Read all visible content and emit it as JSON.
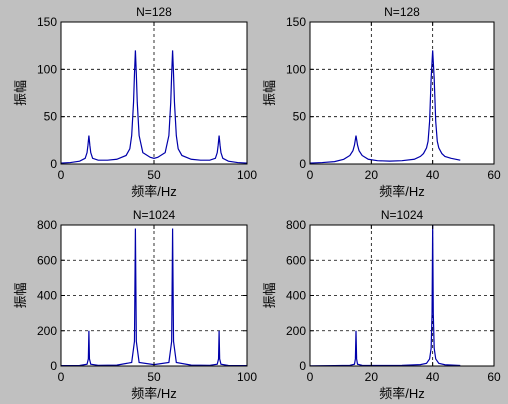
{
  "figure": {
    "background": "#c0c0c0",
    "axes_background": "#ffffff",
    "line_color": "#0000aa"
  },
  "chart_data": [
    {
      "type": "line",
      "title": "N=128",
      "xlabel": "频率/Hz",
      "ylabel": "振幅",
      "xlim": [
        0,
        100
      ],
      "ylim": [
        0,
        150
      ],
      "xticks": [
        0,
        50,
        100
      ],
      "yticks": [
        0,
        50,
        100,
        150
      ],
      "grid": true,
      "series": [
        {
          "x": [
            0,
            5,
            10,
            13,
            14,
            14.5,
            15,
            15.5,
            16,
            17,
            20,
            25,
            30,
            35,
            37,
            38,
            39,
            39.5,
            40,
            40.5,
            41,
            42,
            44,
            48,
            50,
            52,
            56,
            58,
            59,
            59.5,
            60,
            60.5,
            61,
            62,
            63,
            65,
            70,
            75,
            80,
            83,
            84,
            84.5,
            85,
            85.5,
            86,
            87,
            90,
            95,
            100
          ],
          "values": [
            1,
            1.5,
            3,
            6,
            12,
            20,
            30,
            20,
            12,
            6,
            4,
            4,
            5,
            9,
            16,
            30,
            65,
            95,
            120,
            95,
            65,
            30,
            12,
            7,
            6,
            7,
            12,
            30,
            65,
            95,
            120,
            95,
            65,
            30,
            16,
            9,
            5,
            4,
            4,
            6,
            12,
            20,
            30,
            20,
            12,
            6,
            3,
            1.5,
            1
          ]
        }
      ]
    },
    {
      "type": "line",
      "title": "N=128",
      "xlabel": "频率/Hz",
      "ylabel": "振幅",
      "xlim": [
        0,
        60
      ],
      "ylim": [
        0,
        150
      ],
      "xticks": [
        0,
        20,
        40,
        60
      ],
      "yticks": [
        0,
        50,
        100,
        150
      ],
      "grid": true,
      "series": [
        {
          "x": [
            0,
            4,
            8,
            11,
            13,
            14,
            14.5,
            15,
            15.5,
            16,
            17,
            19,
            22,
            26,
            30,
            34,
            36,
            37,
            38,
            38.5,
            39,
            39.5,
            40,
            40.5,
            41,
            41.5,
            42,
            43,
            44,
            46,
            49
          ],
          "values": [
            1,
            1.5,
            2.5,
            5,
            9,
            14,
            20,
            30,
            20,
            14,
            9,
            5,
            3.5,
            3,
            3.5,
            5,
            8,
            11,
            17,
            24,
            45,
            90,
            120,
            90,
            45,
            24,
            17,
            11,
            8,
            6,
            4
          ]
        }
      ]
    },
    {
      "type": "line",
      "title": "N=1024",
      "xlabel": "频率/Hz",
      "ylabel": "振幅",
      "xlim": [
        0,
        100
      ],
      "ylim": [
        0,
        800
      ],
      "xticks": [
        0,
        50,
        100
      ],
      "yticks": [
        0,
        200,
        400,
        600,
        800
      ],
      "grid": true,
      "series": [
        {
          "x": [
            0,
            10,
            14,
            14.7,
            15,
            15.3,
            16,
            20,
            30,
            38,
            39.5,
            40,
            40.5,
            42,
            50,
            58,
            59.5,
            60,
            60.5,
            62,
            70,
            80,
            84,
            84.7,
            85,
            85.3,
            86,
            90,
            100
          ],
          "values": [
            2,
            3,
            10,
            40,
            200,
            40,
            10,
            4,
            5,
            20,
            140,
            780,
            140,
            20,
            8,
            20,
            140,
            780,
            140,
            20,
            5,
            4,
            10,
            40,
            200,
            40,
            10,
            3,
            2
          ]
        }
      ]
    },
    {
      "type": "line",
      "title": "N=1024",
      "xlabel": "频率/Hz",
      "ylabel": "振幅",
      "xlim": [
        0,
        60
      ],
      "ylim": [
        0,
        800
      ],
      "xticks": [
        0,
        20,
        40,
        60
      ],
      "yticks": [
        0,
        200,
        400,
        600,
        800
      ],
      "grid": true,
      "series": [
        {
          "x": [
            0,
            8,
            13,
            14.5,
            14.8,
            15,
            15.2,
            15.5,
            17,
            22,
            30,
            36,
            38,
            39,
            39.5,
            39.8,
            40,
            40.2,
            40.5,
            41,
            42,
            44,
            49
          ],
          "values": [
            1,
            2,
            4,
            10,
            40,
            200,
            40,
            10,
            4,
            3,
            4,
            8,
            15,
            40,
            100,
            300,
            800,
            300,
            100,
            40,
            15,
            7,
            3
          ]
        }
      ]
    }
  ]
}
